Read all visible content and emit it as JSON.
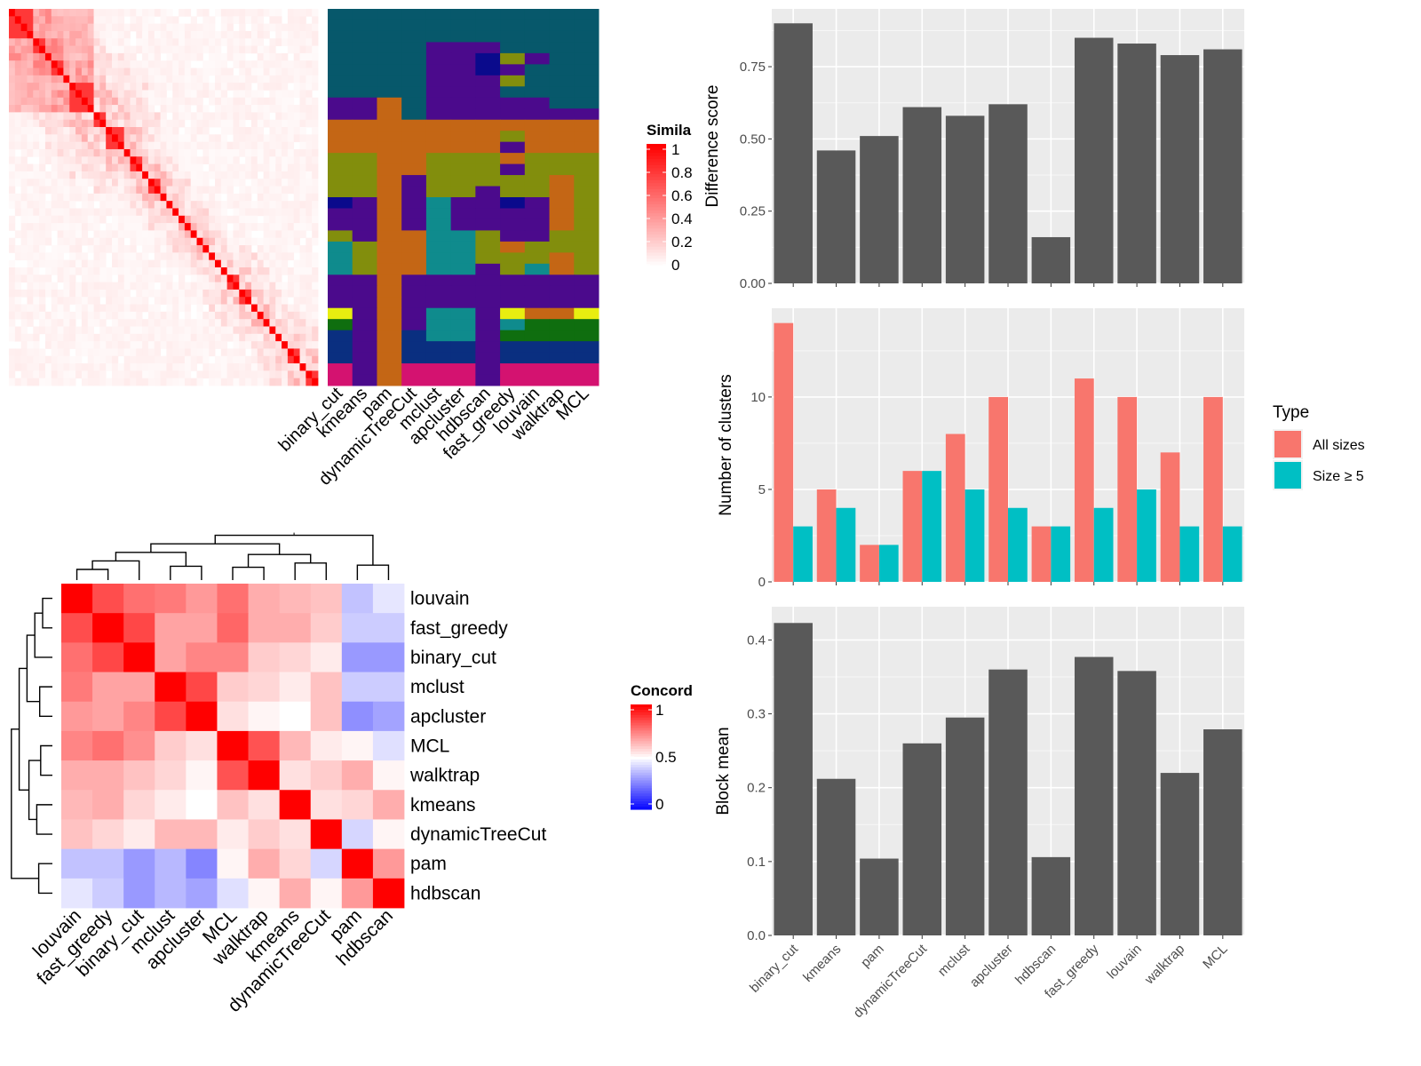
{
  "chart_data": [
    {
      "type": "heatmap",
      "id": "cell_similarity",
      "legend": {
        "title": "Simila",
        "ticks": [
          "1",
          "0.8",
          "0.6",
          "0.4",
          "0.2",
          "0"
        ]
      },
      "methods": [
        "binary_cut",
        "kmeans",
        "pam",
        "dynamicTreeCut",
        "mclust",
        "apcluster",
        "hdbscan",
        "fast_greedy",
        "louvain",
        "walktrap",
        "MCL"
      ],
      "diagonal_blocks": [
        4,
        2,
        1,
        2,
        1,
        4,
        2,
        3,
        1,
        2,
        1,
        2,
        1,
        1,
        1,
        1,
        1,
        1,
        1,
        1,
        1,
        1,
        1,
        2,
        2,
        1,
        1,
        1,
        1,
        1,
        1,
        2,
        1,
        2
      ],
      "class_palette": [
        "#07586b",
        "#4b0a8c",
        "#c46615",
        "#828e0d",
        "#0a0a8c",
        "#0f8b8d",
        "#e8ee10",
        "#0f6e0f",
        "#0a2f80",
        "#d41270"
      ],
      "class_assignments": [
        [
          0,
          0,
          0,
          0,
          0,
          0,
          0,
          0,
          0,
          0,
          0
        ],
        [
          0,
          0,
          0,
          0,
          0,
          0,
          0,
          0,
          0,
          0,
          0
        ],
        [
          0,
          0,
          0,
          0,
          0,
          0,
          0,
          0,
          0,
          0,
          0
        ],
        [
          0,
          0,
          0,
          0,
          1,
          1,
          1,
          0,
          0,
          0,
          0
        ],
        [
          0,
          0,
          0,
          0,
          1,
          1,
          4,
          3,
          1,
          0,
          0
        ],
        [
          0,
          0,
          0,
          0,
          1,
          1,
          4,
          1,
          0,
          0,
          0
        ],
        [
          0,
          0,
          0,
          0,
          1,
          1,
          1,
          3,
          0,
          0,
          0
        ],
        [
          0,
          0,
          0,
          0,
          1,
          1,
          1,
          0,
          0,
          0,
          0
        ],
        [
          1,
          1,
          2,
          0,
          1,
          1,
          1,
          1,
          1,
          0,
          0
        ],
        [
          1,
          1,
          2,
          0,
          1,
          1,
          1,
          1,
          1,
          1,
          1
        ],
        [
          2,
          2,
          2,
          2,
          2,
          2,
          2,
          2,
          2,
          2,
          2
        ],
        [
          2,
          2,
          2,
          2,
          2,
          2,
          2,
          3,
          2,
          2,
          2
        ],
        [
          2,
          2,
          2,
          2,
          2,
          2,
          2,
          1,
          2,
          2,
          2
        ],
        [
          3,
          3,
          2,
          2,
          3,
          3,
          3,
          2,
          3,
          3,
          3
        ],
        [
          3,
          3,
          2,
          2,
          3,
          3,
          3,
          1,
          3,
          3,
          3
        ],
        [
          3,
          3,
          2,
          1,
          3,
          3,
          3,
          3,
          3,
          2,
          3
        ],
        [
          3,
          3,
          2,
          1,
          3,
          3,
          1,
          3,
          3,
          2,
          3
        ],
        [
          4,
          1,
          2,
          1,
          5,
          1,
          1,
          4,
          1,
          2,
          3
        ],
        [
          1,
          1,
          2,
          1,
          5,
          1,
          1,
          1,
          1,
          2,
          3
        ],
        [
          1,
          1,
          2,
          1,
          5,
          1,
          1,
          1,
          1,
          2,
          3
        ],
        [
          3,
          1,
          2,
          2,
          5,
          5,
          3,
          1,
          1,
          3,
          3
        ],
        [
          5,
          3,
          2,
          2,
          5,
          5,
          3,
          2,
          3,
          3,
          3
        ],
        [
          5,
          3,
          2,
          2,
          5,
          5,
          3,
          3,
          3,
          2,
          3
        ],
        [
          5,
          3,
          2,
          2,
          5,
          5,
          1,
          3,
          5,
          2,
          3
        ],
        [
          1,
          1,
          2,
          1,
          1,
          1,
          1,
          1,
          1,
          1,
          1
        ],
        [
          1,
          1,
          2,
          1,
          1,
          1,
          1,
          1,
          1,
          1,
          1
        ],
        [
          1,
          1,
          2,
          1,
          1,
          1,
          1,
          1,
          1,
          1,
          1
        ],
        [
          6,
          1,
          2,
          1,
          5,
          5,
          1,
          6,
          2,
          2,
          6
        ],
        [
          7,
          1,
          2,
          1,
          5,
          5,
          1,
          5,
          7,
          7,
          7
        ],
        [
          8,
          1,
          2,
          8,
          5,
          5,
          1,
          7,
          7,
          7,
          7
        ],
        [
          8,
          1,
          2,
          8,
          8,
          8,
          1,
          8,
          8,
          8,
          8
        ],
        [
          8,
          1,
          2,
          8,
          8,
          8,
          1,
          8,
          8,
          8,
          8
        ],
        [
          9,
          1,
          2,
          9,
          9,
          9,
          1,
          9,
          9,
          9,
          9
        ],
        [
          9,
          1,
          2,
          9,
          9,
          9,
          1,
          9,
          9,
          9,
          9
        ]
      ]
    },
    {
      "type": "heatmap",
      "id": "concordance",
      "legend": {
        "title": "Concord",
        "ticks": [
          "1",
          "0.5",
          "0"
        ]
      },
      "rows": [
        "louvain",
        "fast_greedy",
        "binary_cut",
        "mclust",
        "apcluster",
        "MCL",
        "walktrap",
        "kmeans",
        "dynamicTreeCut",
        "pam",
        "hdbscan"
      ],
      "columns": [
        "louvain",
        "fast_greedy",
        "binary_cut",
        "mclust",
        "apcluster",
        "MCL",
        "walktrap",
        "kmeans",
        "dynamicTreeCut",
        "pam",
        "hdbscan"
      ],
      "values": [
        [
          1.0,
          0.85,
          0.78,
          0.76,
          0.7,
          0.78,
          0.66,
          0.64,
          0.62,
          0.38,
          0.45
        ],
        [
          0.85,
          1.0,
          0.86,
          0.68,
          0.68,
          0.8,
          0.66,
          0.66,
          0.6,
          0.4,
          0.4
        ],
        [
          0.78,
          0.86,
          1.0,
          0.68,
          0.74,
          0.74,
          0.6,
          0.58,
          0.54,
          0.3,
          0.3
        ],
        [
          0.76,
          0.68,
          0.68,
          1.0,
          0.86,
          0.6,
          0.58,
          0.54,
          0.62,
          0.4,
          0.4
        ],
        [
          0.7,
          0.68,
          0.74,
          0.86,
          1.0,
          0.56,
          0.52,
          0.5,
          0.62,
          0.28,
          0.32
        ],
        [
          0.74,
          0.78,
          0.72,
          0.6,
          0.56,
          1.0,
          0.84,
          0.64,
          0.54,
          0.52,
          0.44
        ],
        [
          0.66,
          0.66,
          0.62,
          0.58,
          0.52,
          0.84,
          1.0,
          0.56,
          0.6,
          0.66,
          0.52
        ],
        [
          0.64,
          0.66,
          0.58,
          0.54,
          0.5,
          0.62,
          0.56,
          1.0,
          0.56,
          0.58,
          0.66
        ],
        [
          0.62,
          0.58,
          0.54,
          0.64,
          0.64,
          0.54,
          0.6,
          0.56,
          1.0,
          0.42,
          0.52
        ],
        [
          0.38,
          0.38,
          0.3,
          0.36,
          0.26,
          0.52,
          0.66,
          0.58,
          0.42,
          1.0,
          0.7
        ],
        [
          0.45,
          0.4,
          0.3,
          0.36,
          0.32,
          0.44,
          0.52,
          0.66,
          0.52,
          0.7,
          1.0
        ]
      ]
    },
    {
      "type": "bar",
      "id": "difference_score",
      "categories": [
        "binary_cut",
        "kmeans",
        "pam",
        "dynamicTreeCut",
        "mclust",
        "apcluster",
        "hdbscan",
        "fast_greedy",
        "louvain",
        "walktrap",
        "MCL"
      ],
      "values": [
        0.9,
        0.46,
        0.51,
        0.61,
        0.58,
        0.62,
        0.16,
        0.85,
        0.83,
        0.79,
        0.81
      ],
      "ylabel": "Difference score",
      "ylim": [
        0,
        0.95
      ],
      "yticks": [
        "0.00",
        "0.25",
        "0.50",
        "0.75"
      ],
      "grid": true
    },
    {
      "type": "bar",
      "id": "number_of_clusters",
      "categories": [
        "binary_cut",
        "kmeans",
        "pam",
        "dynamicTreeCut",
        "mclust",
        "apcluster",
        "hdbscan",
        "fast_greedy",
        "louvain",
        "walktrap",
        "MCL"
      ],
      "series": [
        {
          "name": "All sizes",
          "values": [
            14,
            5,
            2,
            6,
            8,
            10,
            3,
            11,
            10,
            7,
            10
          ]
        },
        {
          "name": "Size ≥ 5",
          "values": [
            3,
            4,
            2,
            6,
            5,
            4,
            3,
            4,
            5,
            3,
            3
          ]
        }
      ],
      "series_colors": [
        "#f8766d",
        "#00bfc4"
      ],
      "ylabel": "Number of clusters",
      "ylim": [
        0,
        14.8
      ],
      "yticks": [
        "0",
        "5",
        "10"
      ],
      "legend": {
        "title": "Type",
        "position": "right"
      },
      "grid": true
    },
    {
      "type": "bar",
      "id": "block_mean",
      "categories": [
        "binary_cut",
        "kmeans",
        "pam",
        "dynamicTreeCut",
        "mclust",
        "apcluster",
        "hdbscan",
        "fast_greedy",
        "louvain",
        "walktrap",
        "MCL"
      ],
      "values": [
        0.423,
        0.212,
        0.104,
        0.26,
        0.295,
        0.36,
        0.106,
        0.377,
        0.358,
        0.22,
        0.279
      ],
      "ylabel": "Block mean",
      "ylim": [
        0,
        0.445
      ],
      "yticks": [
        "0.0",
        "0.1",
        "0.2",
        "0.3",
        "0.4"
      ],
      "grid": true
    }
  ]
}
